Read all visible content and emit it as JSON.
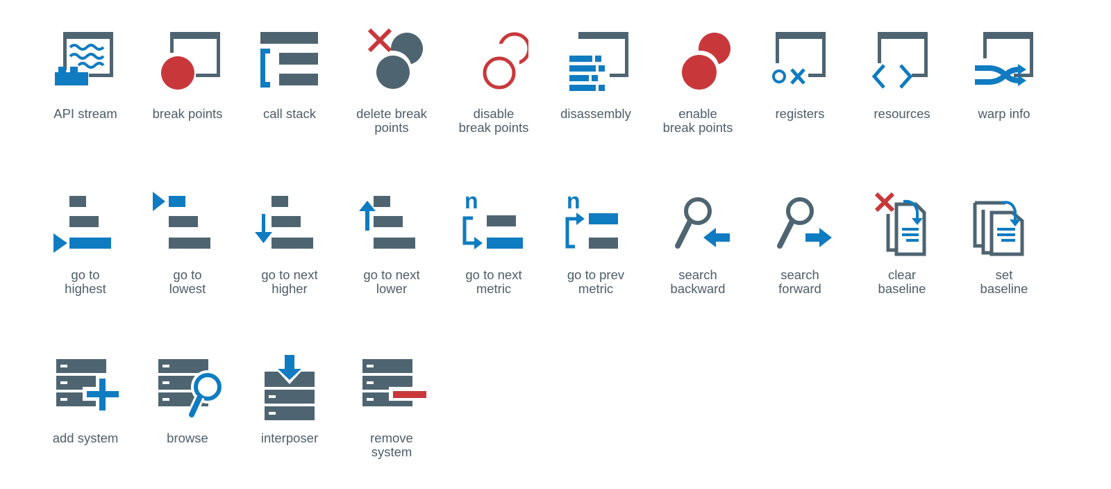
{
  "colors": {
    "gray": "#4e6471",
    "blue": "#0f7bc1",
    "red": "#c8383b",
    "text": "#4d5d69"
  },
  "icons": [
    {
      "name": "api-stream-icon",
      "label": "API stream"
    },
    {
      "name": "break-points-icon",
      "label": "break points"
    },
    {
      "name": "call-stack-icon",
      "label": "call stack"
    },
    {
      "name": "delete-break-points-icon",
      "label": "delete break\npoints"
    },
    {
      "name": "disable-break-points-icon",
      "label": "disable\nbreak points"
    },
    {
      "name": "disassembly-icon",
      "label": "disassembly"
    },
    {
      "name": "enable-break-points-icon",
      "label": "enable\nbreak points"
    },
    {
      "name": "registers-icon",
      "label": "registers"
    },
    {
      "name": "resources-icon",
      "label": "resources"
    },
    {
      "name": "warp-info-icon",
      "label": "warp info"
    },
    {
      "name": "go-to-highest-icon",
      "label": "go to\nhighest"
    },
    {
      "name": "go-to-lowest-icon",
      "label": "go to\nlowest"
    },
    {
      "name": "go-to-next-higher-icon",
      "label": "go to next\nhigher"
    },
    {
      "name": "go-to-next-lower-icon",
      "label": "go to next\nlower"
    },
    {
      "name": "go-to-next-metric-icon",
      "label": "go to next\nmetric",
      "glyph": "n"
    },
    {
      "name": "go-to-prev-metric-icon",
      "label": "go to prev\nmetric",
      "glyph": "n"
    },
    {
      "name": "search-backward-icon",
      "label": "search\nbackward"
    },
    {
      "name": "search-forward-icon",
      "label": "search\nforward"
    },
    {
      "name": "clear-baseline-icon",
      "label": "clear\nbaseline"
    },
    {
      "name": "set-baseline-icon",
      "label": "set\nbaseline"
    },
    {
      "name": "add-system-icon",
      "label": "add system"
    },
    {
      "name": "browse-icon",
      "label": "browse"
    },
    {
      "name": "interposer-icon",
      "label": "interposer"
    },
    {
      "name": "remove-system-icon",
      "label": "remove\nsystem"
    }
  ]
}
